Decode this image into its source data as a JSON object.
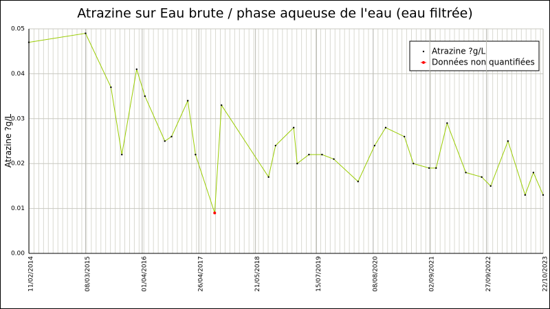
{
  "chart_data": {
    "type": "line",
    "title": "Atrazine sur Eau brute / phase aqueuse de l'eau (eau filtrée)",
    "y_label": "Atrazine ?g/L",
    "x": [
      "11/02/2014",
      "08/03/2015",
      "30/08/2015",
      "13/11/2015",
      "23/02/2016",
      "20/04/2016",
      "04/09/2016",
      "20/10/2016",
      "09/02/2017",
      "03/04/2017",
      "13/08/2017",
      "29/09/2017",
      "19/08/2018",
      "06/10/2018",
      "08/02/2019",
      "04/03/2019",
      "24/05/2019",
      "22/08/2019",
      "11/11/2019",
      "26/04/2020",
      "18/08/2020",
      "02/11/2020",
      "11/03/2021",
      "12/05/2021",
      "28/08/2021",
      "15/10/2021",
      "30/12/2021",
      "08/05/2022",
      "25/08/2022",
      "26/10/2022",
      "22/02/2023",
      "20/06/2023",
      "16/08/2023",
      "22/10/2023"
    ],
    "series": [
      {
        "name": "Atrazine ?g/L",
        "color": "#99cc00",
        "marker_color": "#000000",
        "values": [
          0.047,
          0.049,
          0.037,
          0.022,
          0.041,
          0.035,
          0.025,
          0.026,
          0.034,
          0.022,
          0.009,
          0.033,
          0.017,
          0.024,
          0.028,
          0.02,
          0.022,
          0.022,
          0.021,
          0.016,
          0.024,
          0.028,
          0.026,
          0.02,
          0.019,
          0.019,
          0.029,
          0.018,
          0.017,
          0.015,
          0.025,
          0.013,
          0.018,
          0.013
        ]
      },
      {
        "name": "Données non quantifiées",
        "color": "#ff0000",
        "marker_color": "#ff0000",
        "values": [
          null,
          null,
          null,
          null,
          null,
          null,
          null,
          null,
          null,
          null,
          0.009,
          null,
          null,
          null,
          null,
          null,
          null,
          null,
          null,
          null,
          null,
          null,
          null,
          null,
          null,
          null,
          null,
          null,
          null,
          null,
          null,
          null,
          null,
          null
        ]
      }
    ],
    "xlim": [
      "11/02/2014",
      "22/10/2023"
    ],
    "xticks": [
      "11/02/2014",
      "08/03/2015",
      "01/04/2016",
      "26/04/2017",
      "21/05/2018",
      "15/07/2019",
      "08/08/2020",
      "02/09/2021",
      "27/09/2022",
      "22/10/2023"
    ],
    "ylim": [
      0,
      0.05
    ],
    "yticks": [
      {
        "value": 0,
        "label": "0.00"
      },
      0.01,
      0.02,
      0.03,
      0.04,
      0.05
    ],
    "grid": true
  }
}
